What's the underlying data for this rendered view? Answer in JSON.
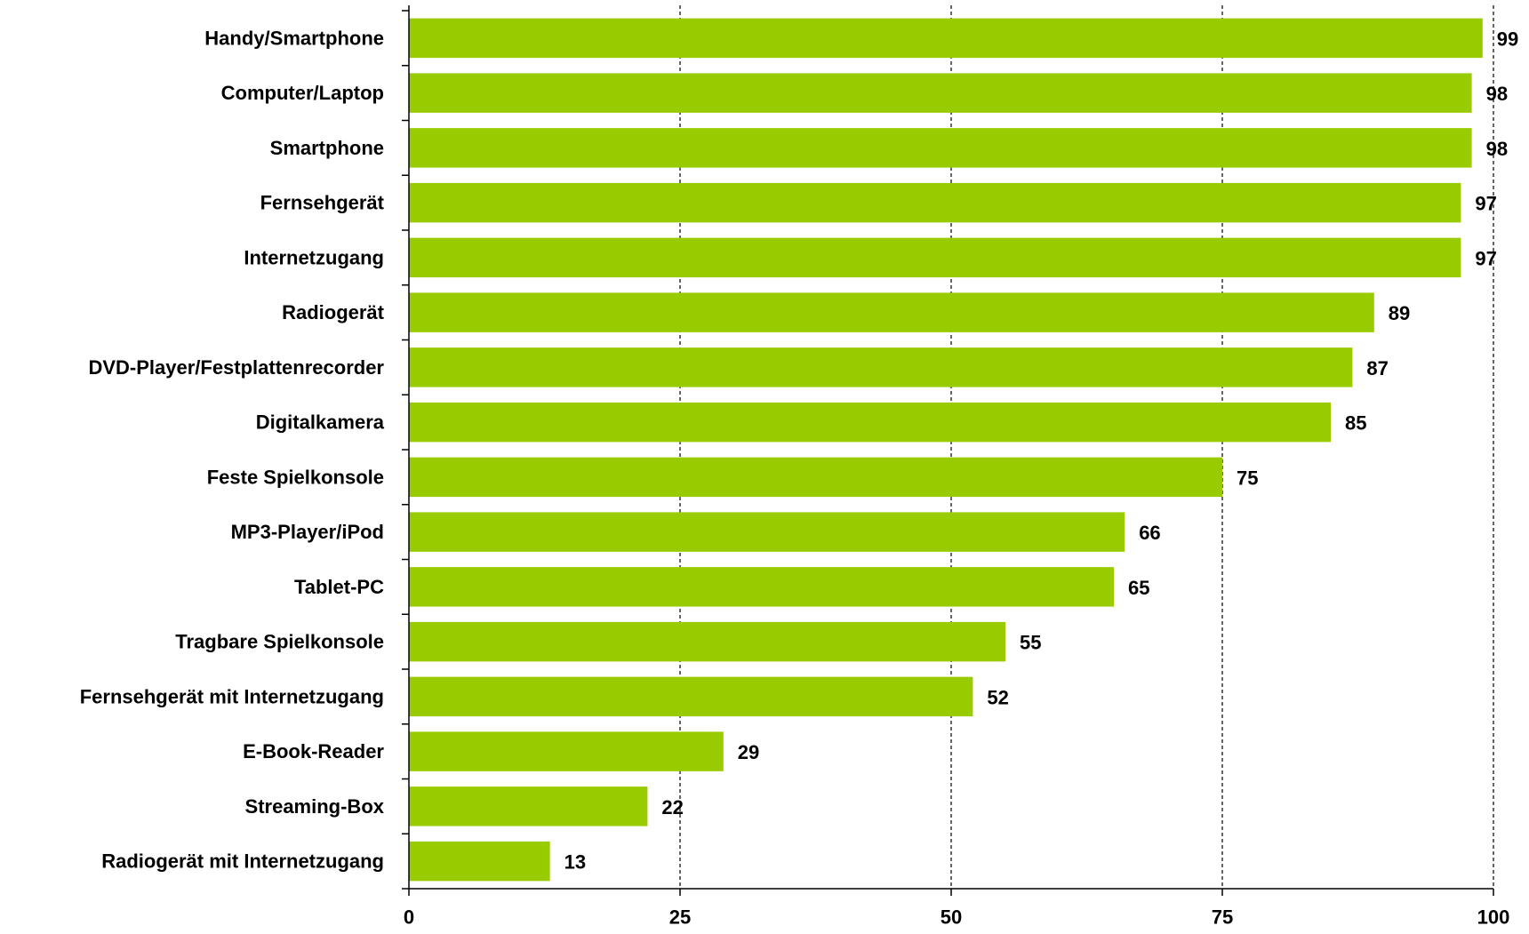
{
  "chart_data": {
    "type": "bar",
    "orientation": "horizontal",
    "categories": [
      "Handy/Smartphone",
      "Computer/Laptop",
      "Smartphone",
      "Fernsehgerät",
      "Internetzugang",
      "Radiogerät",
      "DVD-Player/Festplattenrecorder",
      "Digitalkamera",
      "Feste Spielkonsole",
      "MP3-Player/iPod",
      "Tablet-PC",
      "Tragbare Spielkonsole",
      "Fernsehgerät mit Internetzugang",
      "E-Book-Reader",
      "Streaming-Box",
      "Radiogerät mit Internetzugang"
    ],
    "values": [
      99,
      98,
      98,
      97,
      97,
      89,
      87,
      85,
      75,
      66,
      65,
      55,
      52,
      29,
      22,
      13
    ],
    "xlim": [
      0,
      100
    ],
    "xticks": [
      0,
      25,
      50,
      75,
      100
    ],
    "grid": "vertical-dashed",
    "bar_color": "#99cc00",
    "title": "",
    "xlabel": "",
    "ylabel": ""
  }
}
